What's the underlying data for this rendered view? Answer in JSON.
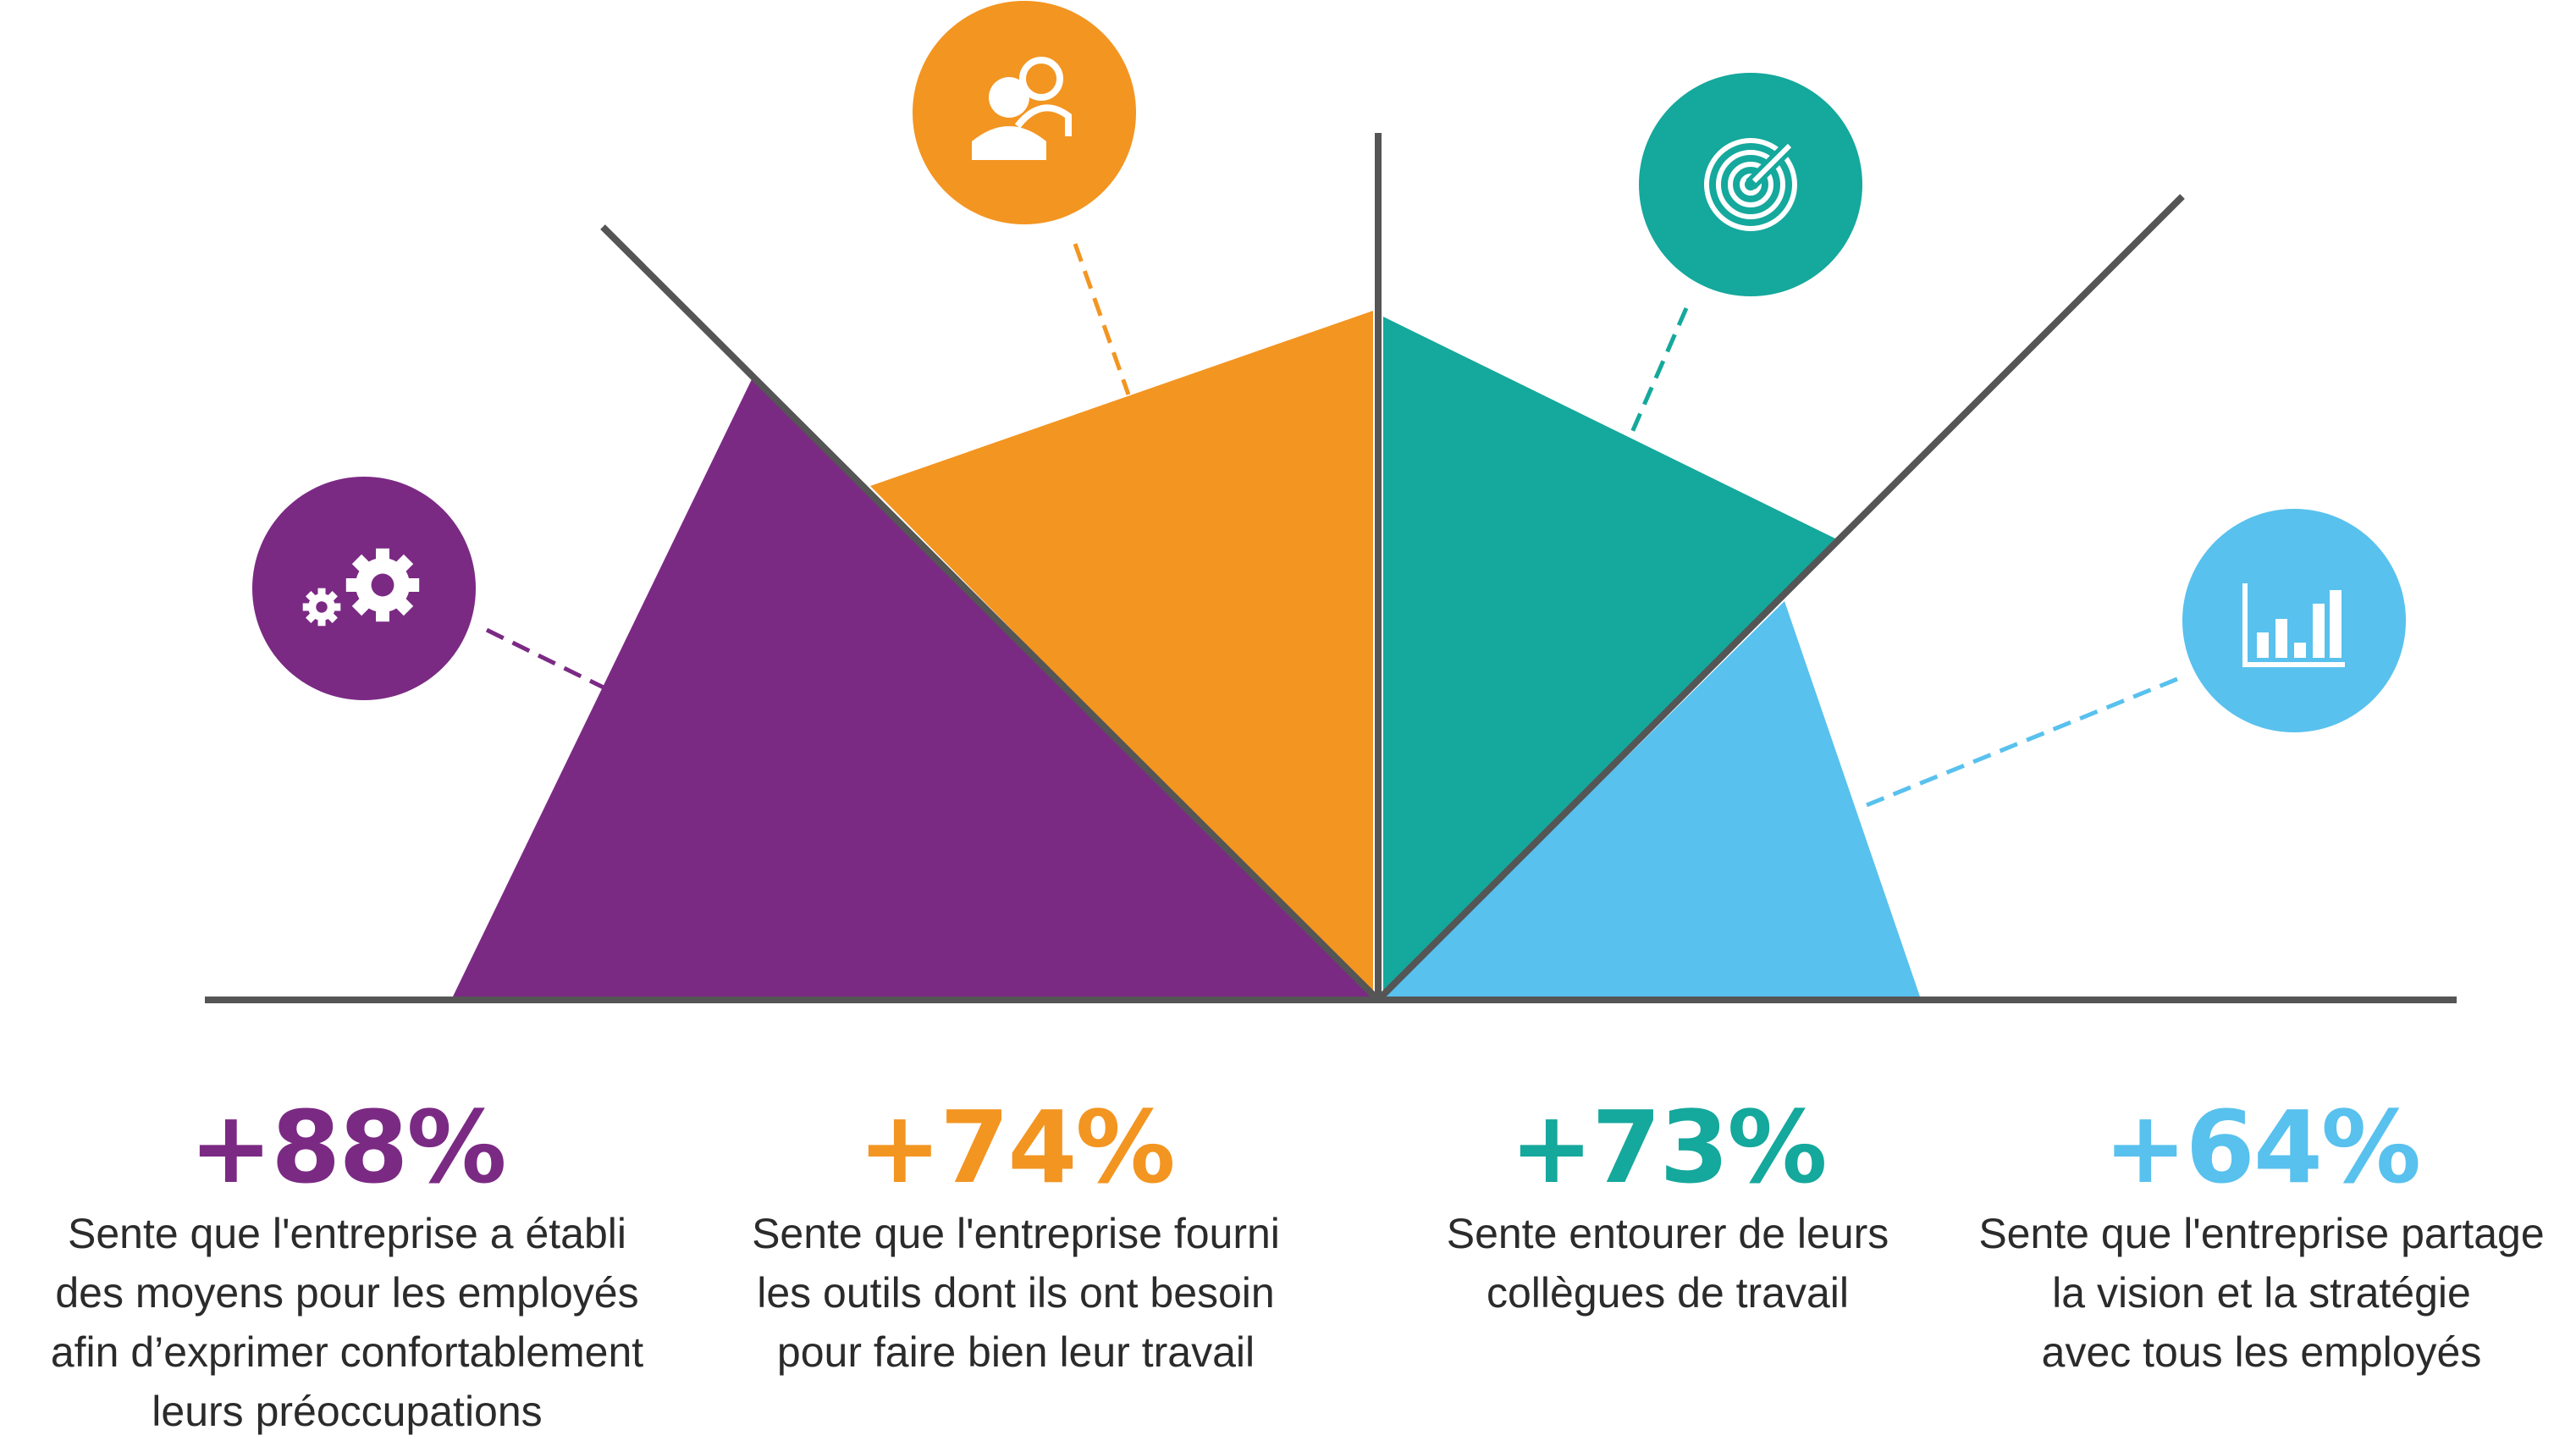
{
  "chart_data": {
    "type": "pie",
    "series": [
      {
        "value": 88,
        "label": "+88%",
        "color": "#7b2a84",
        "description": [
          "Sente que l'entreprise a établi",
          "des moyens pour les employés",
          "afin d’exprimer confortablement",
          "leurs préoccupations"
        ],
        "icon": "gears-icon"
      },
      {
        "value": 74,
        "label": "+74%",
        "color": "#f39521",
        "description": [
          "Sente que l'entreprise fourni",
          "les outils dont ils ont besoin",
          "pour faire bien leur travail"
        ],
        "icon": "people-icon"
      },
      {
        "value": 73,
        "label": "+73%",
        "color": "#15a89c",
        "description": [
          "Sente entourer de leurs",
          "collègues de travail"
        ],
        "icon": "target-icon"
      },
      {
        "value": 64,
        "label": "+64%",
        "color": "#58c1ee",
        "description": [
          "Sente que l'entreprise partage",
          "la vision et la stratégie",
          "avec tous les employés"
        ],
        "icon": "bar-chart-icon"
      }
    ],
    "line_color": "#555555"
  }
}
